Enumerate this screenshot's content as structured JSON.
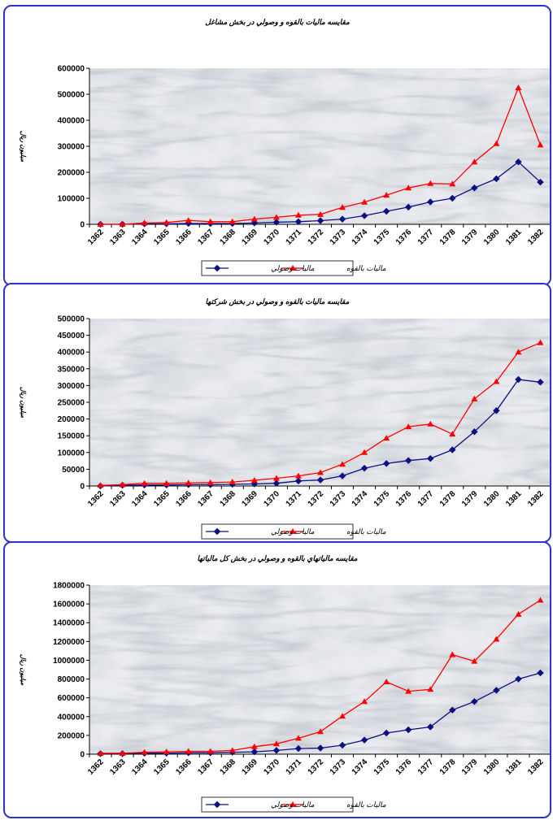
{
  "colors": {
    "actual": "#0a1080",
    "potential": "#ff0000",
    "frame": "#2a35c8"
  },
  "chart_data": [
    {
      "type": "line",
      "title": "مقايسه ماليات بالقوه و وصولي در بخش مشاغل",
      "ylabel": "ميليون ريال",
      "categories": [
        "1362",
        "1363",
        "1364",
        "1365",
        "1366",
        "1367",
        "1368",
        "1369",
        "1370",
        "1371",
        "1372",
        "1373",
        "1374",
        "1375",
        "1376",
        "1377",
        "1378",
        "1379",
        "1380",
        "1381",
        "1382"
      ],
      "ylim": [
        0,
        600000
      ],
      "yticks": [
        "0",
        "100000",
        "200000",
        "300000",
        "400000",
        "500000",
        "600000"
      ],
      "series": [
        {
          "name": "ماليات وصولي",
          "values": [
            0,
            0,
            2000,
            2000,
            3000,
            3000,
            3000,
            5000,
            8000,
            10000,
            14000,
            20000,
            33000,
            50000,
            66000,
            86000,
            100000,
            140000,
            175000,
            240000,
            162000
          ]
        },
        {
          "name": "ماليات بالقوه",
          "values": [
            0,
            0,
            5000,
            7000,
            15000,
            10000,
            10000,
            20000,
            27000,
            35000,
            38000,
            65000,
            85000,
            112000,
            140000,
            157000,
            155000,
            240000,
            310000,
            525000,
            305000
          ]
        }
      ],
      "legend": "bottom"
    },
    {
      "type": "line",
      "title": "مقايسه ماليات بالقوه و وصولي در بخش شركتها",
      "ylabel": "ميليون ريال",
      "categories": [
        "1362",
        "1363",
        "1364",
        "1365",
        "1366",
        "1367",
        "1368",
        "1369",
        "1370",
        "1371",
        "1372",
        "1373",
        "1374",
        "1375",
        "1376",
        "1377",
        "1378",
        "1379",
        "1380",
        "1381",
        "1382"
      ],
      "ylim": [
        0,
        500000
      ],
      "yticks": [
        "0",
        "50000",
        "100000",
        "150000",
        "200000",
        "250000",
        "300000",
        "350000",
        "400000",
        "450000",
        "500000"
      ],
      "series": [
        {
          "name": "ماليات وصولي",
          "values": [
            0,
            2000,
            3000,
            3000,
            4000,
            4000,
            5000,
            6000,
            8000,
            15000,
            18000,
            30000,
            53000,
            67000,
            76000,
            82000,
            108000,
            162000,
            225000,
            318000,
            310000
          ]
        },
        {
          "name": "ماليات بالقوه",
          "values": [
            2000,
            4000,
            8000,
            8000,
            9000,
            10000,
            12000,
            17000,
            23000,
            30000,
            40000,
            65000,
            100000,
            143000,
            177000,
            185000,
            155000,
            260000,
            312000,
            400000,
            428000
          ]
        }
      ],
      "legend": "bottom"
    },
    {
      "type": "line",
      "title": "مقايسه مالياتهاي بالقوه و وصولي در بخش كل مالياتها",
      "ylabel": "ميليون ريال",
      "categories": [
        "1362",
        "1363",
        "1364",
        "1365",
        "1366",
        "1367",
        "1368",
        "1369",
        "1370",
        "1371",
        "1372",
        "1373",
        "1374",
        "1375",
        "1376",
        "1377",
        "1378",
        "1379",
        "1380",
        "1381",
        "1382"
      ],
      "ylim": [
        0,
        1800000
      ],
      "yticks": [
        "0",
        "200000",
        "400000",
        "600000",
        "800000",
        "1000000",
        "1200000",
        "1400000",
        "1600000",
        "1800000"
      ],
      "series": [
        {
          "name": "ماليات وصولي",
          "values": [
            5000,
            5000,
            10000,
            10000,
            15000,
            15000,
            20000,
            25000,
            40000,
            60000,
            65000,
            95000,
            150000,
            225000,
            260000,
            290000,
            470000,
            560000,
            680000,
            800000,
            865000
          ]
        },
        {
          "name": "ماليات بالقوه",
          "values": [
            10000,
            10000,
            20000,
            25000,
            30000,
            30000,
            40000,
            80000,
            110000,
            170000,
            240000,
            405000,
            560000,
            770000,
            670000,
            690000,
            1060000,
            990000,
            1225000,
            1490000,
            1640000
          ]
        }
      ],
      "legend": "bottom"
    }
  ]
}
